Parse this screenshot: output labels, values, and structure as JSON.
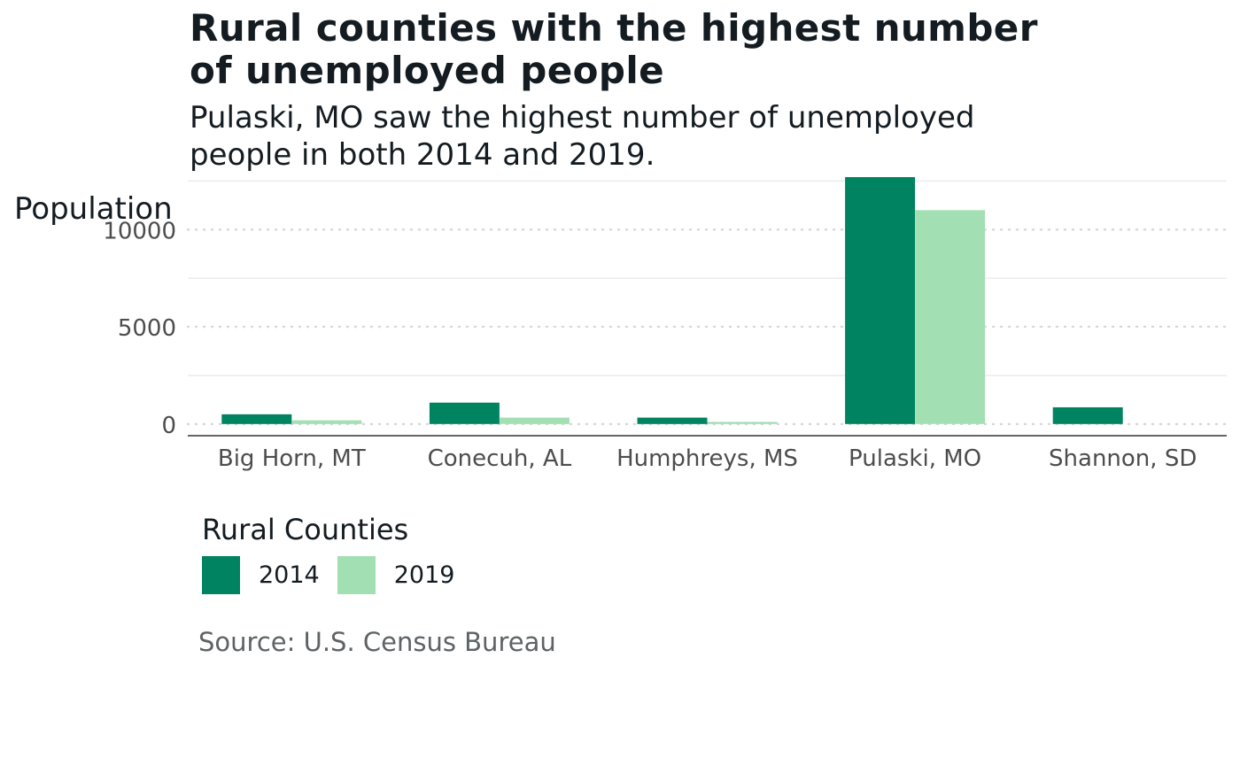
{
  "chart_data": {
    "type": "bar",
    "title": "Rural counties with the highest number\nof unemployed people",
    "subtitle": "Pulaski, MO saw the highest number of unemployed\npeople in both 2014 and 2019.",
    "ylabel": "Population",
    "xlabel": "",
    "categories": [
      "Big Horn, MT",
      "Conecuh, AL",
      "Humphreys, MS",
      "Pulaski, MO",
      "Shannon, SD"
    ],
    "series": [
      {
        "name": "2014",
        "color": "#008361",
        "values": [
          500,
          1100,
          330,
          13350,
          860
        ]
      },
      {
        "name": "2019",
        "color": "#a2e0b4",
        "values": [
          190,
          330,
          110,
          11000,
          0
        ]
      }
    ],
    "ylim": [
      -600,
      12700
    ],
    "yticks": [
      0,
      5000,
      10000
    ],
    "ytick_labels": [
      "0",
      "5000",
      "10000"
    ],
    "legend": {
      "title": "Rural Counties",
      "position": "bottom-left"
    },
    "caption": "Source: U.S. Census Bureau",
    "grid": {
      "major_style": "dotted",
      "minor_style": "solid",
      "vertical": false
    }
  }
}
